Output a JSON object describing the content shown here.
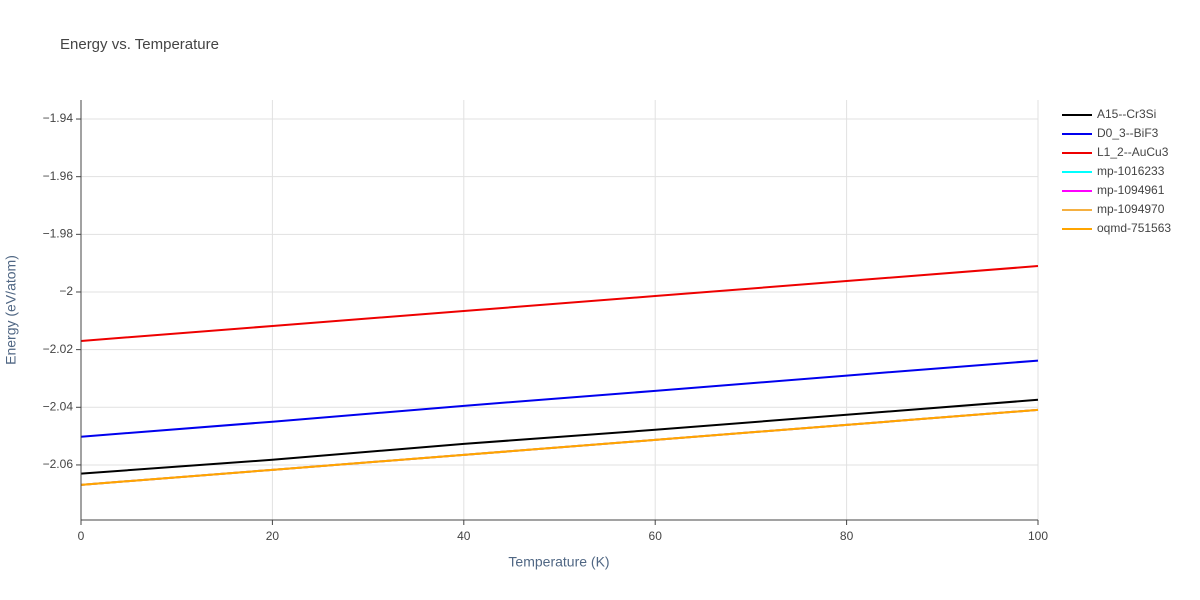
{
  "chart_data": {
    "type": "line",
    "title": "Energy vs. Temperature",
    "x_label": "Temperature (K)",
    "y_label": "Energy (eV/atom)",
    "x": [
      0,
      20,
      40,
      60,
      80,
      100
    ],
    "xlim": [
      0,
      100
    ],
    "xticks": [
      0,
      20,
      40,
      60,
      80,
      100
    ],
    "ylim": [
      -2.0791,
      -1.9334
    ],
    "yticks": [
      {
        "value": -2.06,
        "label": "−2.06"
      },
      {
        "value": -2.04,
        "label": "−2.04"
      },
      {
        "value": -2.02,
        "label": "−2.02"
      },
      {
        "value": -2,
        "label": "−2"
      },
      {
        "value": -1.98,
        "label": "−1.98"
      },
      {
        "value": -1.96,
        "label": "−1.96"
      },
      {
        "value": -1.94,
        "label": "−1.94"
      }
    ],
    "grid": true,
    "legend": "right",
    "series": [
      {
        "name": "A15--Cr3Si",
        "color": "#000000",
        "values": [
          -2.063,
          -2.0582,
          -2.0527,
          -2.0478,
          -2.0426,
          -2.0374
        ]
      },
      {
        "name": "D0_3--BiF3",
        "color": "#0000ee",
        "values": [
          -2.0502,
          -2.045,
          -2.0395,
          -2.0343,
          -2.029,
          -2.0238
        ]
      },
      {
        "name": "L1_2--AuCu3",
        "color": "#ee0000",
        "values": [
          -2.017,
          -2.0118,
          -2.0066,
          -2.0014,
          -1.9962,
          -1.991
        ]
      },
      {
        "name": "mp-1016233",
        "color": "#00ffff",
        "values": [
          -2.0669,
          -2.0617,
          -2.0565,
          -2.0513,
          -2.0461,
          -2.0409
        ]
      },
      {
        "name": "mp-1094961",
        "color": "#ff00ff",
        "values": [
          -2.0669,
          -2.0617,
          -2.0565,
          -2.0513,
          -2.0461,
          -2.0409
        ]
      },
      {
        "name": "mp-1094970",
        "color": "#f5b041",
        "values": [
          -2.0669,
          -2.0617,
          -2.0565,
          -2.0513,
          -2.0461,
          -2.0409
        ]
      },
      {
        "name": "oqmd-751563",
        "color": "#ffa500",
        "values": [
          -2.0669,
          -2.0617,
          -2.0565,
          -2.0513,
          -2.0461,
          -2.0409
        ]
      }
    ]
  }
}
